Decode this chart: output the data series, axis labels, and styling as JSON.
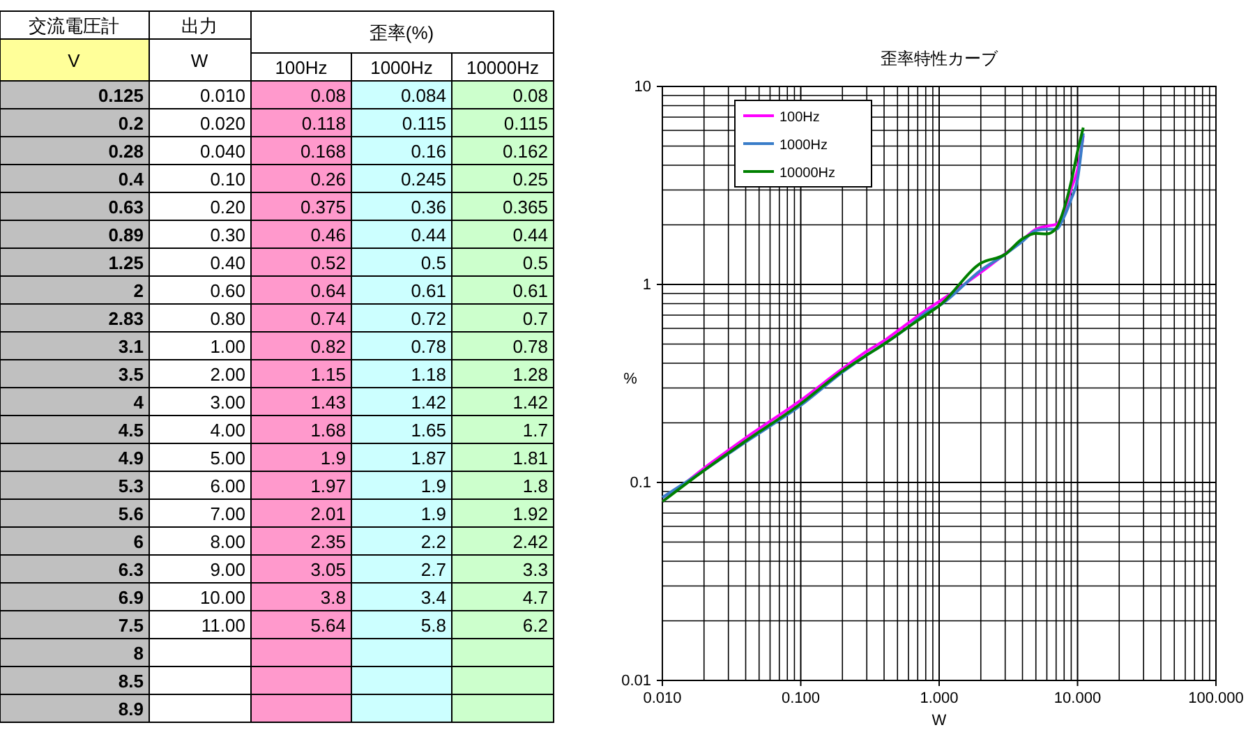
{
  "chart_data": [
    {
      "type": "other",
      "annotations": [
        "交流電圧計",
        "出力",
        "歪率(%)",
        "V",
        "W",
        "100Hz",
        "1000Hz",
        "10000Hz",
        "0.125",
        "0.010",
        "0.08",
        "0.084",
        "0.08",
        "0.2",
        "0.020",
        "0.118",
        "0.115",
        "0.115",
        "0.28",
        "0.040",
        "0.168",
        "0.16",
        "0.162",
        "0.4",
        "0.10",
        "0.26",
        "0.245",
        "0.25",
        "0.63",
        "0.20",
        "0.375",
        "0.36",
        "0.365",
        "0.89",
        "0.30",
        "0.46",
        "0.44",
        "0.44",
        "1.25",
        "0.40",
        "0.52",
        "0.5",
        "0.5",
        "2",
        "0.60",
        "0.64",
        "0.61",
        "0.61",
        "2.83",
        "0.80",
        "0.74",
        "0.72",
        "0.7",
        "3.1",
        "1.00",
        "0.82",
        "0.78",
        "0.78",
        "3.5",
        "2.00",
        "1.15",
        "1.18",
        "1.28",
        "4",
        "3.00",
        "1.43",
        "1.42",
        "1.42",
        "4.5",
        "4.00",
        "1.68",
        "1.65",
        "1.7",
        "4.9",
        "5.00",
        "1.9",
        "1.87",
        "1.81",
        "5.3",
        "6.00",
        "1.97",
        "1.9",
        "1.8",
        "5.6",
        "7.00",
        "2.01",
        "1.9",
        "1.92",
        "6",
        "8.00",
        "2.35",
        "2.2",
        "2.42",
        "6.3",
        "9.00",
        "3.05",
        "2.7",
        "3.3",
        "6.9",
        "10.00",
        "3.8",
        "3.4",
        "4.7",
        "7.5",
        "11.00",
        "5.64",
        "5.8",
        "6.2",
        "8",
        "8.5",
        "8.9"
      ]
    },
    {
      "type": "line",
      "title": "歪率特性カーブ",
      "xlabel": "W",
      "ylabel": "%",
      "x": [
        0.01,
        0.02,
        0.04,
        0.1,
        0.2,
        0.3,
        0.4,
        0.6,
        0.8,
        1,
        2,
        3,
        4,
        5,
        6,
        7,
        8,
        9,
        10,
        11
      ],
      "series": [
        {
          "name": "100Hz",
          "color": "#ff00ff",
          "values": [
            0.08,
            0.118,
            0.168,
            0.26,
            0.375,
            0.46,
            0.52,
            0.64,
            0.74,
            0.82,
            1.15,
            1.43,
            1.68,
            1.9,
            1.97,
            2.01,
            2.35,
            3.05,
            3.8,
            5.64
          ]
        },
        {
          "name": "1000Hz",
          "color": "#3a7dc9",
          "values": [
            0.084,
            0.115,
            0.16,
            0.245,
            0.36,
            0.44,
            0.5,
            0.61,
            0.72,
            0.78,
            1.18,
            1.42,
            1.65,
            1.87,
            1.9,
            1.9,
            2.2,
            2.7,
            3.4,
            5.8
          ]
        },
        {
          "name": "10000Hz",
          "color": "#008000",
          "values": [
            0.08,
            0.115,
            0.162,
            0.25,
            0.365,
            0.44,
            0.5,
            0.61,
            0.7,
            0.78,
            1.28,
            1.42,
            1.7,
            1.81,
            1.8,
            1.92,
            2.42,
            3.3,
            4.7,
            6.2
          ]
        }
      ],
      "log": "xy",
      "xlim": [
        0.01,
        100
      ],
      "ylim": [
        0.01,
        10
      ],
      "xticks": [
        {
          "value": 0.01,
          "label": "0.010"
        },
        {
          "value": 0.1,
          "label": "0.100"
        },
        {
          "value": 1,
          "label": "1.000"
        },
        {
          "value": 10,
          "label": "10.000"
        },
        {
          "value": 100,
          "label": "100.000"
        }
      ],
      "yticks": [
        0.01,
        0.1,
        1,
        10
      ],
      "grid": true,
      "legend": "top left"
    }
  ]
}
